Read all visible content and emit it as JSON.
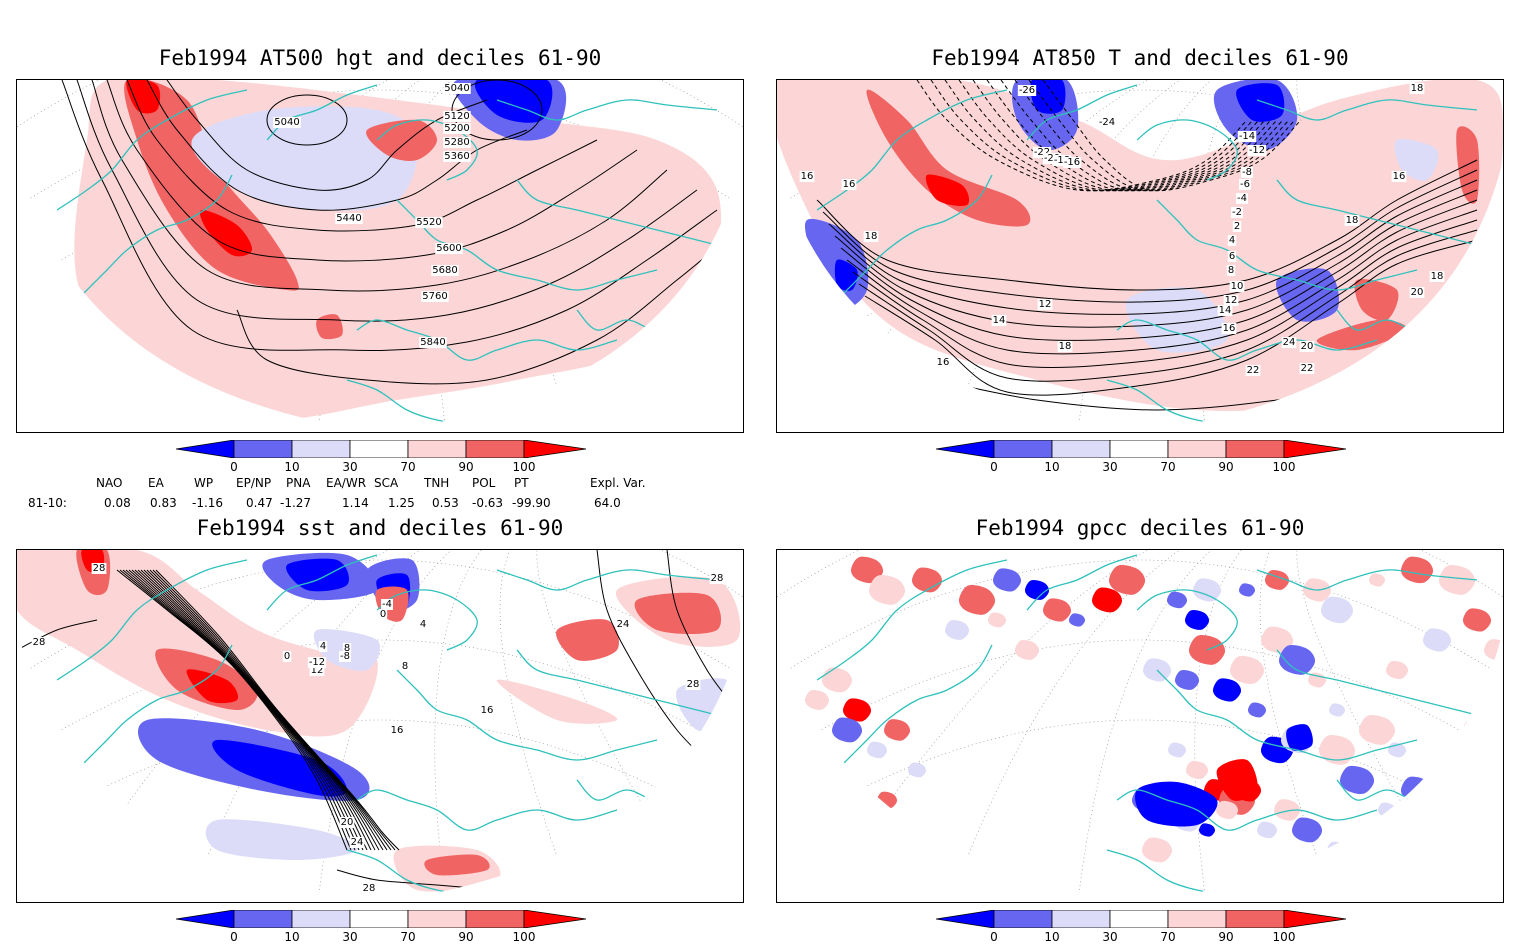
{
  "panels": [
    {
      "title": "Feb1994 AT500 hgt and deciles 61-90",
      "contour_labels": [
        "5040",
        "5040",
        "5120",
        "5200",
        "5280",
        "5360",
        "5440",
        "5520",
        "5600",
        "5680",
        "5760",
        "5840"
      ]
    },
    {
      "title": "Feb1994 AT850 T and deciles 61-90",
      "contour_labels": [
        "-26",
        "-24",
        "-22",
        "-20",
        "-18",
        "-16",
        "-14",
        "-12",
        "-8",
        "-6",
        "-4",
        "-2",
        "2",
        "4",
        "6",
        "8",
        "10",
        "12",
        "12",
        "14",
        "14",
        "16",
        "16",
        "16",
        "16",
        "18",
        "18",
        "18",
        "18",
        "18",
        "20",
        "20",
        "22",
        "22",
        "24",
        "16"
      ]
    },
    {
      "title": "Feb1994 sst and deciles 61-90",
      "contour_labels": [
        "28",
        "28",
        "28",
        "28",
        "24",
        "24",
        "20",
        "16",
        "16",
        "12",
        "8",
        "8",
        "4",
        "4",
        "0",
        "0",
        "-4",
        "-8",
        "-12",
        "28"
      ]
    },
    {
      "title": "Feb1994 gpcc deciles 61-90",
      "contour_labels": []
    }
  ],
  "colorbar": {
    "ticks": [
      "0",
      "10",
      "30",
      "70",
      "90",
      "100"
    ],
    "colors": [
      "#0000ff",
      "#6666f0",
      "#dcdcf8",
      "#ffffff",
      "#fcd6d6",
      "#f06464",
      "#ff0000"
    ]
  },
  "indices": {
    "headers": [
      "NAO",
      "EA",
      "WP",
      "EP/NP",
      "PNA",
      "EA/WR",
      "SCA",
      "TNH",
      "POL",
      "PT",
      "Expl. Var."
    ],
    "row_label": "81-10:",
    "values": [
      "0.08",
      "0.83",
      "-1.16",
      "0.47",
      "-1.27",
      "1.14",
      "1.25",
      "0.53",
      "-0.63",
      "-99.90",
      "64.0"
    ]
  }
}
